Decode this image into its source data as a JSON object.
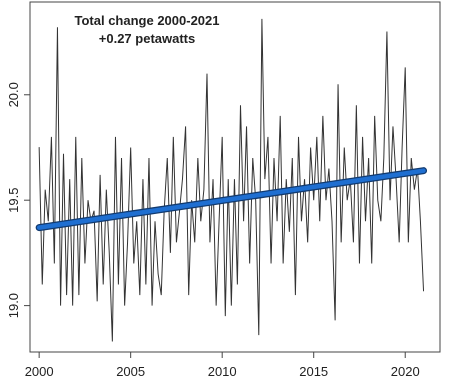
{
  "chart_data": {
    "type": "line",
    "annotations": [
      "Total change 2000-2021",
      "+0.27 petawatts"
    ],
    "series": [
      {
        "color": "#333333",
        "x": [
          2000,
          2000.17,
          2000.33,
          2000.5,
          2000.67,
          2000.83,
          2001,
          2001.17,
          2001.33,
          2001.5,
          2001.67,
          2001.83,
          2002,
          2002.17,
          2002.33,
          2002.5,
          2002.67,
          2002.83,
          2003,
          2003.17,
          2003.33,
          2003.5,
          2003.67,
          2003.83,
          2004,
          2004.17,
          2004.33,
          2004.5,
          2004.67,
          2004.83,
          2005,
          2005.17,
          2005.33,
          2005.5,
          2005.67,
          2005.83,
          2006,
          2006.17,
          2006.33,
          2006.5,
          2006.67,
          2006.83,
          2007,
          2007.17,
          2007.33,
          2007.5,
          2007.67,
          2007.83,
          2008,
          2008.17,
          2008.33,
          2008.5,
          2008.67,
          2008.83,
          2009,
          2009.17,
          2009.33,
          2009.5,
          2009.67,
          2009.83,
          2010,
          2010.17,
          2010.33,
          2010.5,
          2010.67,
          2010.83,
          2011,
          2011.17,
          2011.33,
          2011.5,
          2011.67,
          2011.83,
          2012,
          2012.17,
          2012.33,
          2012.5,
          2012.67,
          2012.83,
          2013,
          2013.17,
          2013.33,
          2013.5,
          2013.67,
          2013.83,
          2014,
          2014.17,
          2014.33,
          2014.5,
          2014.67,
          2014.83,
          2015,
          2015.17,
          2015.33,
          2015.5,
          2015.67,
          2015.83,
          2016,
          2016.17,
          2016.33,
          2016.5,
          2016.67,
          2016.83,
          2017,
          2017.17,
          2017.33,
          2017.5,
          2017.67,
          2017.83,
          2018,
          2018.17,
          2018.33,
          2018.5,
          2018.67,
          2018.83,
          2019,
          2019.17,
          2019.33,
          2019.5,
          2019.67,
          2019.83,
          2020,
          2020.17,
          2020.33,
          2020.5,
          2020.67,
          2020.83,
          2021
        ],
        "values": [
          19.75,
          19.1,
          19.55,
          19.4,
          19.8,
          19.2,
          20.32,
          19.0,
          19.72,
          19.05,
          19.6,
          19.0,
          19.8,
          19.05,
          19.7,
          19.2,
          19.5,
          19.4,
          19.45,
          19.02,
          19.62,
          19.1,
          19.55,
          19.25,
          18.83,
          19.8,
          19.1,
          19.7,
          19.0,
          19.3,
          19.75,
          19.2,
          19.4,
          19.05,
          19.6,
          19.1,
          19.7,
          19.0,
          19.4,
          19.15,
          19.05,
          19.45,
          19.7,
          19.25,
          19.8,
          19.3,
          19.45,
          19.6,
          19.85,
          19.05,
          19.5,
          19.3,
          19.7,
          19.4,
          19.55,
          20.1,
          19.3,
          19.6,
          19.0,
          19.4,
          19.8,
          18.95,
          19.6,
          19.0,
          19.6,
          19.1,
          19.95,
          19.4,
          19.85,
          19.2,
          19.7,
          19.5,
          18.86,
          20.36,
          19.6,
          19.8,
          19.2,
          19.7,
          19.4,
          19.9,
          19.2,
          19.6,
          19.35,
          19.7,
          19.05,
          19.8,
          19.4,
          19.6,
          19.3,
          19.75,
          19.5,
          19.8,
          19.4,
          19.9,
          19.5,
          19.65,
          19.4,
          18.93,
          20.05,
          19.3,
          19.75,
          19.5,
          19.6,
          19.3,
          19.95,
          19.2,
          19.8,
          19.4,
          19.7,
          19.2,
          19.9,
          19.5,
          19.4,
          19.7,
          20.3,
          19.5,
          19.85,
          19.6,
          19.3,
          19.75,
          20.13,
          19.3,
          19.7,
          19.55,
          19.65,
          19.4,
          19.07
        ]
      },
      {
        "color": "#1f6fd1",
        "x": [
          2000,
          2021
        ],
        "values": [
          19.37,
          19.64
        ]
      }
    ],
    "xlim": [
      1999.5,
      2021.9
    ],
    "ylim": [
      18.78,
      20.44
    ],
    "xticks": [
      2000,
      2005,
      2010,
      2015,
      2020
    ],
    "yticks": [
      {
        "value": 19,
        "label": "19.0"
      },
      19.5,
      {
        "value": 20,
        "label": "20.0"
      }
    ],
    "grid": false
  }
}
